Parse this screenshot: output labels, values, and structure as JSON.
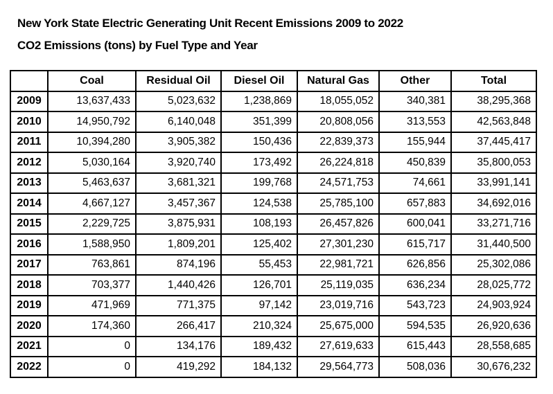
{
  "page": {
    "title_line1": "New York State Electric Generating Unit Recent Emissions 2009 to 2022",
    "title_line2": "CO2 Emissions (tons) by Fuel Type and Year"
  },
  "colors": {
    "background": "#ffffff",
    "text": "#000000",
    "table_border": "#000000"
  },
  "table": {
    "columns": [
      "",
      "Coal",
      "Residual Oil",
      "Diesel Oil",
      "Natural Gas",
      "Other",
      "Total"
    ],
    "rows": [
      {
        "year": "2009",
        "values": [
          "13,637,433",
          "5,023,632",
          "1,238,869",
          "18,055,052",
          "340,381",
          "38,295,368"
        ]
      },
      {
        "year": "2010",
        "values": [
          "14,950,792",
          "6,140,048",
          "351,399",
          "20,808,056",
          "313,553",
          "42,563,848"
        ]
      },
      {
        "year": "2011",
        "values": [
          "10,394,280",
          "3,905,382",
          "150,436",
          "22,839,373",
          "155,944",
          "37,445,417"
        ]
      },
      {
        "year": "2012",
        "values": [
          "5,030,164",
          "3,920,740",
          "173,492",
          "26,224,818",
          "450,839",
          "35,800,053"
        ]
      },
      {
        "year": "2013",
        "values": [
          "5,463,637",
          "3,681,321",
          "199,768",
          "24,571,753",
          "74,661",
          "33,991,141"
        ]
      },
      {
        "year": "2014",
        "values": [
          "4,667,127",
          "3,457,367",
          "124,538",
          "25,785,100",
          "657,883",
          "34,692,016"
        ]
      },
      {
        "year": "2015",
        "values": [
          "2,229,725",
          "3,875,931",
          "108,193",
          "26,457,826",
          "600,041",
          "33,271,716"
        ]
      },
      {
        "year": "2016",
        "values": [
          "1,588,950",
          "1,809,201",
          "125,402",
          "27,301,230",
          "615,717",
          "31,440,500"
        ]
      },
      {
        "year": "2017",
        "values": [
          "763,861",
          "874,196",
          "55,453",
          "22,981,721",
          "626,856",
          "25,302,086"
        ]
      },
      {
        "year": "2018",
        "values": [
          "703,377",
          "1,440,426",
          "126,701",
          "25,119,035",
          "636,234",
          "28,025,772"
        ]
      },
      {
        "year": "2019",
        "values": [
          "471,969",
          "771,375",
          "97,142",
          "23,019,716",
          "543,723",
          "24,903,924"
        ]
      },
      {
        "year": "2020",
        "values": [
          "174,360",
          "266,417",
          "210,324",
          "25,675,000",
          "594,535",
          "26,920,636"
        ]
      },
      {
        "year": "2021",
        "values": [
          "0",
          "134,176",
          "189,432",
          "27,619,633",
          "615,443",
          "28,558,685"
        ]
      },
      {
        "year": "2022",
        "values": [
          "0",
          "419,292",
          "184,132",
          "29,564,773",
          "508,036",
          "30,676,232"
        ]
      }
    ]
  }
}
